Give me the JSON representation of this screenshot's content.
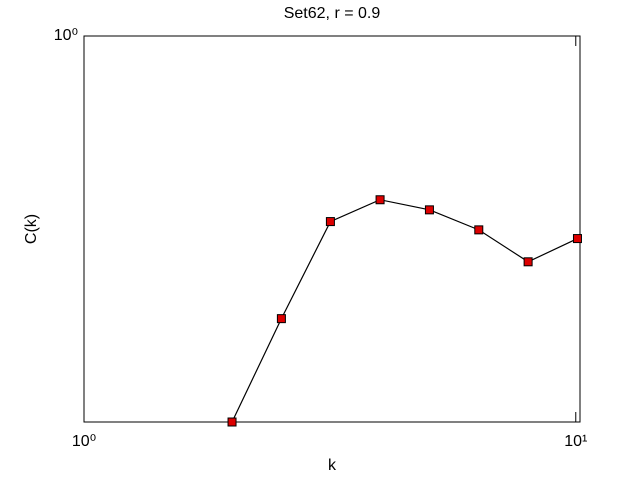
{
  "chart_data": {
    "type": "line",
    "title": "Set62, r = 0.9",
    "x_label": "k",
    "y_label": "C(k)",
    "x": [
      2,
      2.52,
      3.17,
      4,
      5.04,
      6.35,
      8,
      10.08
    ],
    "series": [
      {
        "color": "#dd0000",
        "values": [
          0.108,
          0.196,
          0.343,
          0.389,
          0.367,
          0.327,
          0.272,
          0.311
        ]
      }
    ],
    "xlim": [
      1,
      10.2
    ],
    "ylim": [
      0.108,
      1
    ],
    "xticks": [
      {
        "value": 1,
        "label": "10⁰"
      },
      {
        "value": 10,
        "label": "10¹"
      }
    ],
    "yticks": [
      {
        "value": 1,
        "label": "10⁰"
      }
    ],
    "xscale": "log",
    "yscale": "log"
  }
}
